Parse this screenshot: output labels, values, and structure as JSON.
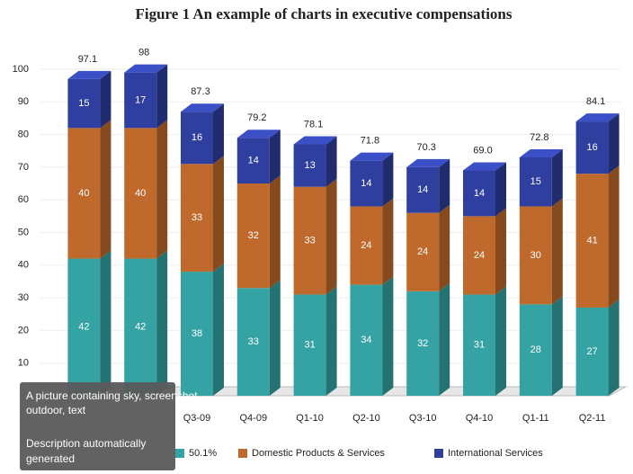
{
  "chart_data": {
    "type": "bar3d_stacked",
    "title": "Figure 1 An example of charts in executive compensations",
    "categories": [
      null,
      null,
      "Q3-09",
      "Q4-09",
      "Q1-10",
      "Q2-10",
      "Q3-10",
      "Q4-10",
      "Q1-11",
      "Q2-11"
    ],
    "series": [
      {
        "name": "50.1%",
        "color": "#35a3a3",
        "values": [
          42,
          42,
          38,
          33,
          31,
          34,
          32,
          31,
          28,
          27
        ]
      },
      {
        "name": "Domestic Products & Services",
        "color": "#bf6a2c",
        "values": [
          40,
          40,
          33,
          32,
          33,
          24,
          24,
          24,
          30,
          41
        ]
      },
      {
        "name": "International Services",
        "color": "#2f3f9f",
        "values": [
          15,
          17,
          16,
          14,
          13,
          14,
          14,
          14,
          15,
          16
        ]
      }
    ],
    "totals": [
      97.1,
      98,
      87.3,
      79.2,
      78.1,
      71.8,
      70.3,
      69.0,
      72.8,
      84.1
    ],
    "total_labels": [
      "97.1",
      "98",
      "87.3",
      "79.2",
      "78.1",
      "71.8",
      "70.3",
      "69.0",
      "72.8",
      "84.1"
    ],
    "ylim": [
      0,
      100
    ],
    "yticks": [
      10,
      20,
      30,
      40,
      50,
      60,
      70,
      80,
      90,
      100
    ],
    "grid": true,
    "overlay": {
      "caption": "A picture containing sky, screenshot, outdoor, text",
      "note": "Description automatically generated"
    }
  }
}
